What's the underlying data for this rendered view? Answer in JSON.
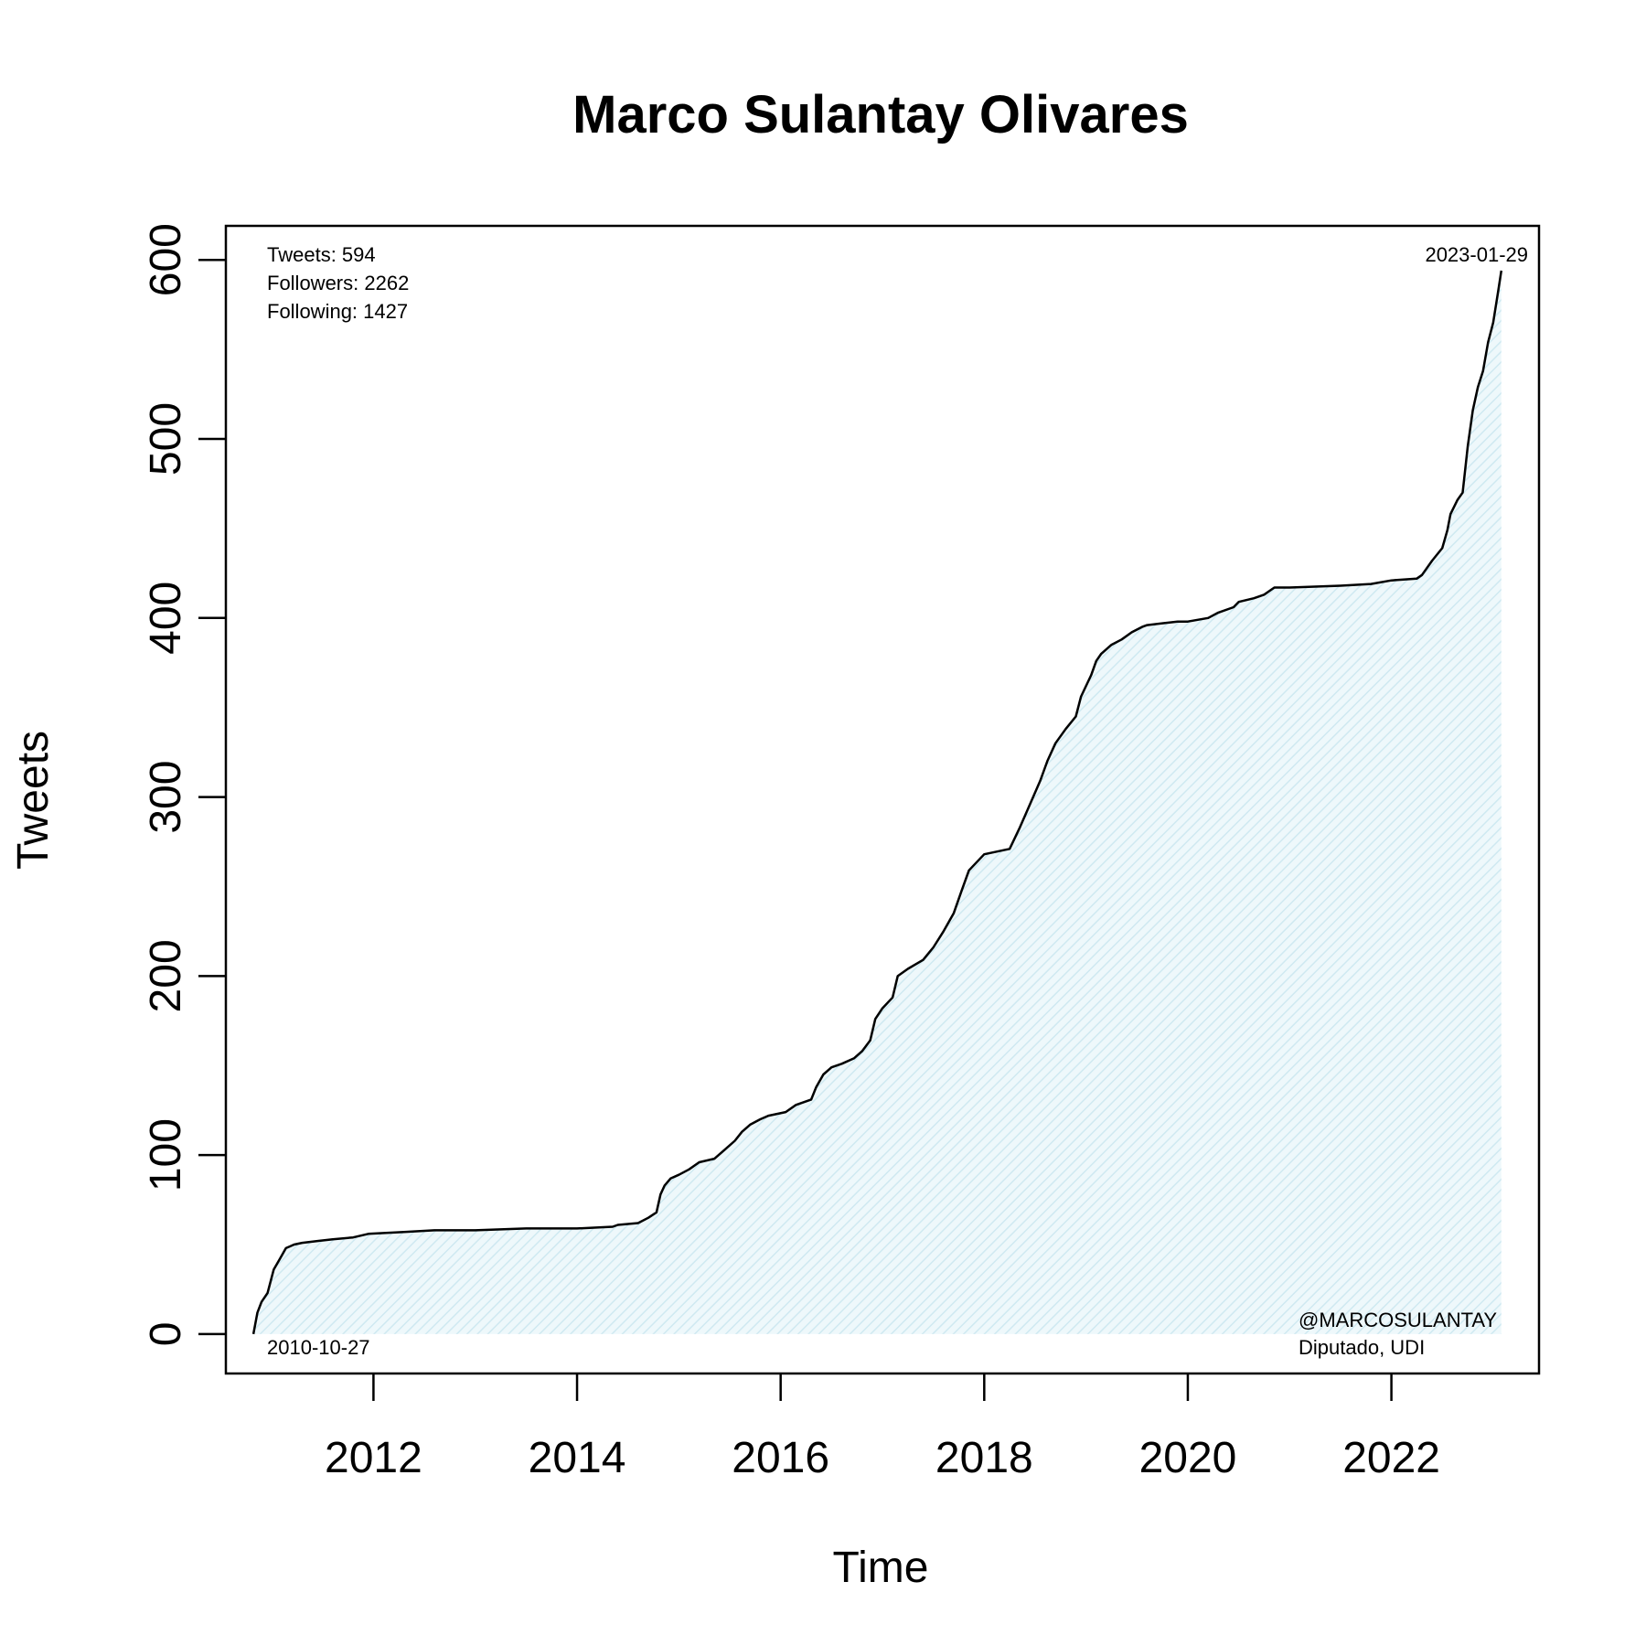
{
  "chart_data": {
    "type": "area",
    "title": "Marco Sulantay Olivares",
    "xlabel": "Time",
    "ylabel": "Tweets",
    "xlim": [
      2010.55,
      2023.45
    ],
    "ylim": [
      -22,
      619
    ],
    "x_ticks": [
      2012,
      2014,
      2016,
      2018,
      2020,
      2022
    ],
    "x_tick_labels": [
      "2012",
      "2014",
      "2016",
      "2018",
      "2020",
      "2022"
    ],
    "y_ticks": [
      0,
      100,
      200,
      300,
      400,
      500,
      600
    ],
    "y_tick_labels": [
      "0",
      "100",
      "200",
      "300",
      "400",
      "500",
      "600"
    ],
    "grid": false,
    "fill_color": "#d8eef5",
    "line_color": "#000000",
    "annotations": {
      "stats": [
        "Tweets: 594",
        "Followers: 2262",
        "Following: 1427"
      ],
      "start_date": "2010-10-27",
      "end_date": "2023-01-29",
      "handle": "@MARCOSULANTAY",
      "affiliation": "Diputado, UDI"
    },
    "series": [
      {
        "x": [
          2010.82,
          2010.86,
          2010.9,
          2010.96,
          2011.02,
          2011.08,
          2011.14,
          2011.18,
          2011.22,
          2011.3,
          2011.45,
          2011.6,
          2011.8,
          2011.95,
          2012.3,
          2012.6,
          2013.0,
          2013.5,
          2014.0,
          2014.35,
          2014.4,
          2014.6,
          2014.7,
          2014.78,
          2014.82,
          2014.86,
          2014.92,
          2015.0,
          2015.1,
          2015.2,
          2015.35,
          2015.45,
          2015.55,
          2015.62,
          2015.7,
          2015.8,
          2015.88,
          2016.05,
          2016.15,
          2016.3,
          2016.35,
          2016.42,
          2016.5,
          2016.6,
          2016.72,
          2016.8,
          2016.88,
          2016.93,
          2017.0,
          2017.1,
          2017.15,
          2017.25,
          2017.4,
          2017.5,
          2017.6,
          2017.7,
          2017.78,
          2017.85,
          2018.0,
          2018.25,
          2018.35,
          2018.45,
          2018.55,
          2018.62,
          2018.7,
          2018.8,
          2018.9,
          2018.95,
          2019.05,
          2019.1,
          2019.15,
          2019.25,
          2019.35,
          2019.45,
          2019.55,
          2019.6,
          2019.75,
          2019.9,
          2020.0,
          2020.2,
          2020.3,
          2020.45,
          2020.5,
          2020.65,
          2020.75,
          2020.8,
          2020.85,
          2021.0,
          2021.5,
          2021.8,
          2022.0,
          2022.25,
          2022.3,
          2022.4,
          2022.5,
          2022.55,
          2022.58,
          2022.65,
          2022.7,
          2022.75,
          2022.8,
          2022.85,
          2022.9,
          2022.95,
          2023.0,
          2023.05,
          2023.08
        ],
        "y": [
          0,
          12,
          18,
          23,
          36,
          42,
          48,
          49,
          50,
          51,
          52,
          53,
          54,
          56,
          57,
          58,
          58,
          59,
          59,
          60,
          61,
          62,
          65,
          68,
          78,
          83,
          87,
          89,
          92,
          96,
          98,
          103,
          108,
          113,
          117,
          120,
          122,
          124,
          128,
          131,
          138,
          145,
          149,
          151,
          154,
          158,
          164,
          176,
          182,
          188,
          200,
          204,
          209,
          216,
          225,
          235,
          248,
          259,
          268,
          271,
          283,
          296,
          309,
          320,
          330,
          338,
          345,
          356,
          368,
          376,
          380,
          385,
          388,
          392,
          395,
          396,
          397,
          398,
          398,
          400,
          403,
          406,
          409,
          411,
          413,
          415,
          417,
          417,
          418,
          419,
          421,
          422,
          424,
          432,
          439,
          449,
          458,
          466,
          470,
          496,
          516,
          529,
          538,
          554,
          565,
          583,
          594
        ]
      }
    ]
  }
}
